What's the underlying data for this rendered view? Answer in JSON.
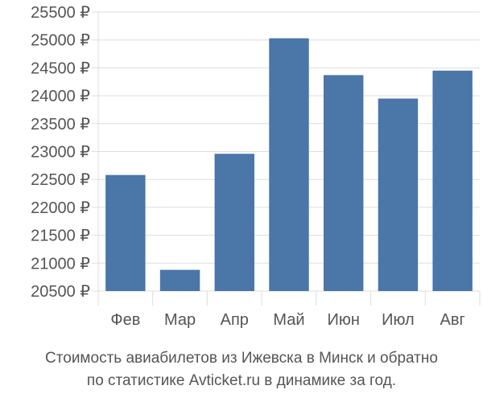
{
  "chart_data": {
    "type": "bar",
    "categories": [
      "Фев",
      "Мар",
      "Апр",
      "Май",
      "Июн",
      "Июл",
      "Авг"
    ],
    "values": [
      22580,
      20880,
      22960,
      25030,
      24370,
      23950,
      24450
    ],
    "ylim": [
      20500,
      25500
    ],
    "yticks": [
      20500,
      21000,
      21500,
      22000,
      22500,
      23000,
      23500,
      24000,
      24500,
      25000,
      25500
    ],
    "ytick_labels": [
      "20500 ₽",
      "21000 ₽",
      "21500 ₽",
      "22000 ₽",
      "22500 ₽",
      "23000 ₽",
      "23500 ₽",
      "24000 ₽",
      "24500 ₽",
      "25000 ₽",
      "25500 ₽"
    ],
    "grid": true,
    "bar_color": "#4a76a8",
    "grid_color": "#dddddd"
  },
  "caption": {
    "line1": "Стоимость авиабилетов из Ижевска в Минск и обратно",
    "line2": "по статистике Avticket.ru в динамике за год."
  }
}
